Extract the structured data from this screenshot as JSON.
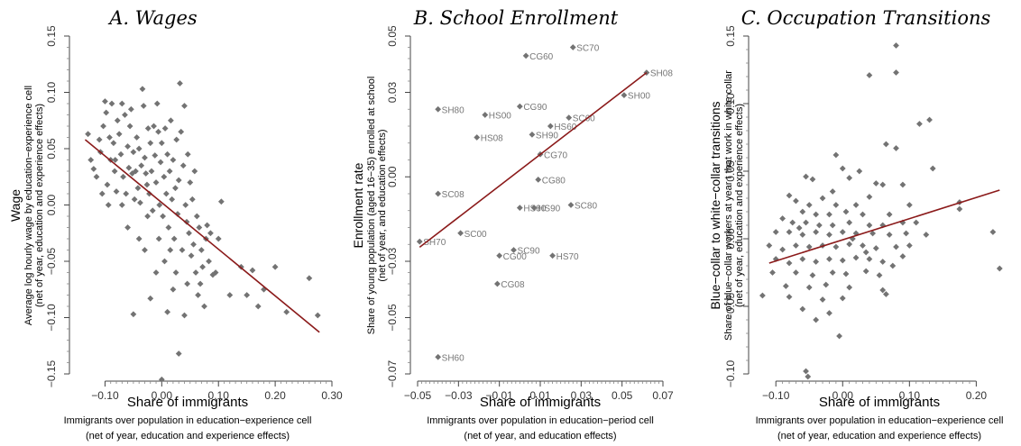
{
  "chart_data": [
    {
      "type": "scatter",
      "title": "A. Wages",
      "xlabel": "Share of immigrants",
      "xsublabel": "Immigrants over population in education−experience cell",
      "xsublabel2": "(net of year, education and experience effects)",
      "ylabel": "Wage",
      "ysublabel": "Average log hourly wage by education−experience cell",
      "ysublabel2": "(net of year, education and experience effects)",
      "xlim": [
        -0.15,
        0.3
      ],
      "ylim": [
        -0.15,
        0.15
      ],
      "xticks": [
        -0.1,
        0.0,
        0.1,
        0.2,
        0.3
      ],
      "xtick_labels": [
        "−0.10",
        "0.00",
        "0.10",
        "0.20",
        "0.30"
      ],
      "yticks": [
        -0.15,
        -0.1,
        -0.05,
        0.0,
        0.05,
        0.1,
        0.15
      ],
      "ytick_labels": [
        "−0.15",
        "−0.10",
        "−0.05",
        "0.00",
        "0.05",
        "0.10",
        "0.15"
      ],
      "fit_line": {
        "x": [
          -0.135,
          0.278
        ],
        "y": [
          0.058,
          -0.113
        ]
      },
      "point_color": "#737373",
      "line_color": "#8b1a1a",
      "points": [
        [
          -0.13,
          0.063
        ],
        [
          -0.12,
          0.032
        ],
        [
          -0.115,
          0.025
        ],
        [
          -0.108,
          0.047
        ],
        [
          -0.103,
          0.07
        ],
        [
          -0.1,
          0.092
        ],
        [
          -0.098,
          0.082
        ],
        [
          -0.096,
          0.018
        ],
        [
          -0.094,
          0.0
        ],
        [
          -0.092,
          0.06
        ],
        [
          -0.09,
          0.04
        ],
        [
          -0.088,
          0.09
        ],
        [
          -0.085,
          0.055
        ],
        [
          -0.083,
          0.03
        ],
        [
          -0.08,
          0.012
        ],
        [
          -0.078,
          0.075
        ],
        [
          -0.075,
          0.063
        ],
        [
          -0.072,
          0.045
        ],
        [
          -0.07,
          0.09
        ],
        [
          -0.068,
          0.025
        ],
        [
          -0.065,
          0.08
        ],
        [
          -0.063,
          0.01
        ],
        [
          -0.06,
          0.052
        ],
        [
          -0.058,
          0.033
        ],
        [
          -0.056,
          0.07
        ],
        [
          -0.054,
          0.085
        ],
        [
          -0.052,
          0.028
        ],
        [
          -0.05,
          0.047
        ],
        [
          -0.048,
          0.005
        ],
        [
          -0.046,
          0.03
        ],
        [
          -0.044,
          0.06
        ],
        [
          -0.042,
          0.015
        ],
        [
          -0.04,
          0.05
        ],
        [
          -0.038,
          0.002
        ],
        [
          -0.036,
          0.035
        ],
        [
          -0.034,
          0.103
        ],
        [
          -0.032,
          0.088
        ],
        [
          -0.03,
          0.042
        ],
        [
          -0.028,
          0.028
        ],
        [
          -0.026,
          0.018
        ],
        [
          -0.024,
          0.068
        ],
        [
          -0.022,
          0.01
        ],
        [
          -0.02,
          0.055
        ],
        [
          -0.018,
          0.03
        ],
        [
          -0.016,
          -0.005
        ],
        [
          -0.014,
          0.07
        ],
        [
          -0.012,
          0.044
        ],
        [
          -0.01,
          0.02
        ],
        [
          -0.008,
          0.09
        ],
        [
          -0.006,
          0.065
        ],
        [
          -0.004,
          0.0
        ],
        [
          -0.002,
          0.038
        ],
        [
          0.0,
          0.055
        ],
        [
          0.002,
          -0.01
        ],
        [
          0.004,
          0.025
        ],
        [
          0.006,
          0.068
        ],
        [
          0.008,
          0.01
        ],
        [
          0.01,
          0.045
        ],
        [
          0.012,
          -0.02
        ],
        [
          0.014,
          0.03
        ],
        [
          0.016,
          0.075
        ],
        [
          0.018,
          0.005
        ],
        [
          0.02,
          0.04
        ],
        [
          0.022,
          -0.03
        ],
        [
          0.024,
          0.015
        ],
        [
          0.026,
          0.058
        ],
        [
          0.028,
          -0.008
        ],
        [
          0.03,
          0.022
        ],
        [
          0.032,
          0.108
        ],
        [
          0.034,
          0.065
        ],
        [
          0.036,
          -0.04
        ],
        [
          0.038,
          0.035
        ],
        [
          0.04,
          0.088
        ],
        [
          0.042,
          0.0
        ],
        [
          0.044,
          -0.015
        ],
        [
          0.046,
          0.045
        ],
        [
          0.048,
          -0.025
        ],
        [
          0.05,
          0.02
        ],
        [
          0.052,
          -0.045
        ],
        [
          0.054,
          0.005
        ],
        [
          0.056,
          -0.035
        ],
        [
          0.058,
          0.03
        ],
        [
          0.06,
          -0.06
        ],
        [
          0.062,
          -0.01
        ],
        [
          0.064,
          -0.08
        ],
        [
          0.066,
          -0.02
        ],
        [
          0.068,
          -0.07
        ],
        [
          0.07,
          -0.04
        ],
        [
          0.072,
          -0.055
        ],
        [
          0.075,
          -0.09
        ],
        [
          0.078,
          -0.03
        ],
        [
          0.08,
          -0.018
        ],
        [
          0.083,
          -0.05
        ],
        [
          0.086,
          -0.025
        ],
        [
          0.09,
          -0.062
        ],
        [
          0.095,
          -0.06
        ],
        [
          0.1,
          -0.03
        ],
        [
          0.105,
          0.003
        ],
        [
          0.12,
          -0.08
        ],
        [
          0.14,
          -0.055
        ],
        [
          0.15,
          -0.08
        ],
        [
          0.16,
          -0.058
        ],
        [
          0.17,
          -0.09
        ],
        [
          0.18,
          -0.075
        ],
        [
          0.2,
          -0.055
        ],
        [
          0.22,
          -0.095
        ],
        [
          0.26,
          -0.065
        ],
        [
          0.275,
          -0.098
        ],
        [
          0.03,
          -0.132
        ],
        [
          0.0,
          -0.155
        ],
        [
          -0.05,
          -0.097
        ],
        [
          -0.02,
          -0.083
        ],
        [
          0.01,
          -0.095
        ],
        [
          0.02,
          -0.075
        ],
        [
          0.04,
          -0.098
        ],
        [
          -0.01,
          -0.06
        ],
        [
          -0.03,
          -0.04
        ],
        [
          0.005,
          -0.05
        ],
        [
          -0.06,
          -0.02
        ],
        [
          -0.04,
          -0.03
        ],
        [
          0.015,
          -0.04
        ],
        [
          0.025,
          -0.06
        ],
        [
          -0.005,
          -0.03
        ],
        [
          -0.025,
          -0.01
        ],
        [
          0.045,
          -0.07
        ],
        [
          -0.07,
          0.0
        ],
        [
          -0.11,
          0.058
        ],
        [
          -0.125,
          0.04
        ],
        [
          -0.105,
          0.01
        ],
        [
          -0.082,
          0.04
        ]
      ]
    },
    {
      "type": "scatter",
      "title": "B. School Enrollment",
      "xlabel": "Share of immigrants",
      "xsublabel": "Immigrants over population in education−period cell",
      "xsublabel2": "(net of year, and education effects)",
      "ylabel": "Enrollment rate",
      "ysublabel": "Share of young population (aged 16−35) enrolled at school",
      "ysublabel2": "(net of year, and education effects)",
      "xlim": [
        -0.05,
        0.07
      ],
      "ylim": [
        -0.07,
        0.05
      ],
      "xticks": [
        -0.05,
        -0.03,
        -0.01,
        0.01,
        0.03,
        0.05,
        0.07
      ],
      "xtick_labels": [
        "−0.05",
        "−0.03",
        "−0.01",
        "0.01",
        "0.03",
        "0.05",
        "0.07"
      ],
      "yticks": [
        -0.07,
        -0.05,
        -0.03,
        0.0,
        0.03,
        0.05
      ],
      "ytick_labels": [
        "−0.07",
        "−0.05",
        "−0.03",
        "0.00",
        "0.03",
        "0.05"
      ],
      "fit_line": {
        "x": [
          -0.049,
          0.062
        ],
        "y": [
          -0.025,
          0.037
        ]
      },
      "point_color": "#737373",
      "line_color": "#8b1a1a",
      "labeled_points": [
        {
          "label": "SC70",
          "x": 0.026,
          "y": 0.046
        },
        {
          "label": "CG60",
          "x": 0.003,
          "y": 0.043
        },
        {
          "label": "SH08",
          "x": 0.062,
          "y": 0.037
        },
        {
          "label": "SH00",
          "x": 0.051,
          "y": 0.029
        },
        {
          "label": "SH80",
          "x": -0.04,
          "y": 0.024
        },
        {
          "label": "CG90",
          "x": 0.0,
          "y": 0.025
        },
        {
          "label": "HS00",
          "x": -0.017,
          "y": 0.022
        },
        {
          "label": "SC60",
          "x": 0.024,
          "y": 0.021
        },
        {
          "label": "HS60",
          "x": 0.015,
          "y": 0.018
        },
        {
          "label": "SH90",
          "x": 0.006,
          "y": 0.015
        },
        {
          "label": "HS08",
          "x": -0.021,
          "y": 0.014
        },
        {
          "label": "CG70",
          "x": 0.01,
          "y": 0.008
        },
        {
          "label": "CG80",
          "x": 0.009,
          "y": -0.001
        },
        {
          "label": "SC08",
          "x": -0.04,
          "y": -0.006
        },
        {
          "label": "SC80",
          "x": 0.025,
          "y": -0.01
        },
        {
          "label": "HS80",
          "x": 0.0,
          "y": -0.011
        },
        {
          "label": "HS90",
          "x": 0.007,
          "y": -0.011
        },
        {
          "label": "SC00",
          "x": -0.029,
          "y": -0.02
        },
        {
          "label": "SH70",
          "x": -0.049,
          "y": -0.023
        },
        {
          "label": "SC90",
          "x": -0.003,
          "y": -0.026
        },
        {
          "label": "CG00",
          "x": -0.01,
          "y": -0.028
        },
        {
          "label": "HS70",
          "x": 0.016,
          "y": -0.028
        },
        {
          "label": "CG08",
          "x": -0.011,
          "y": -0.038
        },
        {
          "label": "SH60",
          "x": -0.04,
          "y": -0.064
        }
      ]
    },
    {
      "type": "scatter",
      "title": "C. Occupation Transitions",
      "xlabel": "Share of immigrants",
      "xsublabel": "Immigrants over population in education−experience cell",
      "xsublabel2": "(net of year, education and experience effects)",
      "ylabel": "Blue−collar to white−collar transitions",
      "ysublabel": "Share of blue−collar workers at year t that work in white collar",
      "ysublabel2": "(net of year, education and experience effects)",
      "xlim": [
        -0.13,
        0.24
      ],
      "ylim": [
        -0.1,
        0.15
      ],
      "xticks": [
        -0.1,
        0.0,
        0.1,
        0.2
      ],
      "xtick_labels": [
        "−0.10",
        "0.00",
        "0.10",
        "0.20"
      ],
      "yticks": [
        -0.1,
        -0.05,
        0.0,
        0.05,
        0.1,
        0.15
      ],
      "ytick_labels": [
        "−0.10",
        "−0.05",
        "0.00",
        "0.05",
        "0.10",
        "0.15"
      ],
      "fit_line": {
        "x": [
          -0.11,
          0.235
        ],
        "y": [
          -0.018,
          0.036
        ]
      },
      "point_color": "#737373",
      "line_color": "#8b1a1a",
      "points": [
        [
          0.08,
          0.143
        ],
        [
          0.08,
          0.123
        ],
        [
          0.04,
          0.121
        ],
        [
          0.13,
          0.088
        ],
        [
          0.115,
          0.085
        ],
        [
          0.065,
          0.07
        ],
        [
          0.08,
          0.067
        ],
        [
          -0.01,
          0.062
        ],
        [
          0.0,
          0.052
        ],
        [
          0.135,
          0.052
        ],
        [
          0.025,
          0.05
        ],
        [
          -0.055,
          0.046
        ],
        [
          -0.045,
          0.044
        ],
        [
          0.01,
          0.045
        ],
        [
          0.05,
          0.041
        ],
        [
          0.06,
          0.04
        ],
        [
          0.09,
          0.04
        ],
        [
          -0.08,
          0.032
        ],
        [
          -0.03,
          0.03
        ],
        [
          0.04,
          0.031
        ],
        [
          -0.07,
          0.028
        ],
        [
          -0.05,
          0.025
        ],
        [
          -0.01,
          0.025
        ],
        [
          0.02,
          0.025
        ],
        [
          0.1,
          0.025
        ],
        [
          0.175,
          0.027
        ],
        [
          0.175,
          0.022
        ],
        [
          -0.06,
          0.02
        ],
        [
          -0.04,
          0.018
        ],
        [
          -0.02,
          0.018
        ],
        [
          0.005,
          0.02
        ],
        [
          0.03,
          0.018
        ],
        [
          0.07,
          0.018
        ],
        [
          -0.09,
          0.015
        ],
        [
          -0.075,
          0.012
        ],
        [
          -0.055,
          0.012
        ],
        [
          -0.035,
          0.01
        ],
        [
          -0.015,
          0.01
        ],
        [
          0.01,
          0.012
        ],
        [
          0.04,
          0.01
        ],
        [
          0.06,
          0.01
        ],
        [
          0.09,
          0.012
        ],
        [
          0.11,
          0.012
        ],
        [
          -0.1,
          0.005
        ],
        [
          -0.08,
          0.005
        ],
        [
          -0.06,
          0.003
        ],
        [
          -0.04,
          0.005
        ],
        [
          -0.02,
          0.003
        ],
        [
          0.0,
          0.005
        ],
        [
          0.02,
          0.004
        ],
        [
          0.045,
          0.004
        ],
        [
          0.07,
          0.003
        ],
        [
          0.095,
          0.004
        ],
        [
          0.125,
          0.003
        ],
        [
          0.225,
          0.005
        ],
        [
          -0.11,
          -0.005
        ],
        [
          -0.09,
          -0.008
        ],
        [
          -0.07,
          -0.005
        ],
        [
          -0.05,
          -0.006
        ],
        [
          -0.03,
          -0.005
        ],
        [
          -0.01,
          -0.006
        ],
        [
          0.01,
          -0.004
        ],
        [
          0.03,
          -0.005
        ],
        [
          0.05,
          -0.007
        ],
        [
          0.08,
          -0.006
        ],
        [
          0.1,
          -0.005
        ],
        [
          -0.1,
          -0.015
        ],
        [
          -0.08,
          -0.018
        ],
        [
          -0.06,
          -0.015
        ],
        [
          -0.04,
          -0.017
        ],
        [
          -0.02,
          -0.015
        ],
        [
          0.0,
          -0.016
        ],
        [
          0.02,
          -0.014
        ],
        [
          0.04,
          -0.015
        ],
        [
          0.06,
          -0.017
        ],
        [
          0.09,
          -0.013
        ],
        [
          -0.105,
          -0.025
        ],
        [
          -0.07,
          -0.025
        ],
        [
          -0.045,
          -0.027
        ],
        [
          -0.015,
          -0.025
        ],
        [
          0.005,
          -0.026
        ],
        [
          0.035,
          -0.024
        ],
        [
          0.055,
          -0.027
        ],
        [
          0.235,
          -0.022
        ],
        [
          -0.085,
          -0.035
        ],
        [
          -0.05,
          -0.036
        ],
        [
          -0.025,
          -0.034
        ],
        [
          0.01,
          -0.036
        ],
        [
          0.06,
          -0.038
        ],
        [
          -0.12,
          -0.042
        ],
        [
          -0.08,
          -0.043
        ],
        [
          -0.03,
          -0.045
        ],
        [
          0.0,
          -0.044
        ],
        [
          0.065,
          -0.041
        ],
        [
          -0.06,
          -0.052
        ],
        [
          -0.02,
          -0.055
        ],
        [
          -0.04,
          -0.06
        ],
        [
          -0.005,
          -0.072
        ],
        [
          -0.055,
          -0.098
        ],
        [
          -0.052,
          -0.102
        ],
        [
          -0.065,
          0.008
        ],
        [
          -0.015,
          0.035
        ],
        [
          0.015,
          0.0
        ],
        [
          0.035,
          -0.01
        ],
        [
          0.075,
          -0.02
        ]
      ]
    }
  ]
}
